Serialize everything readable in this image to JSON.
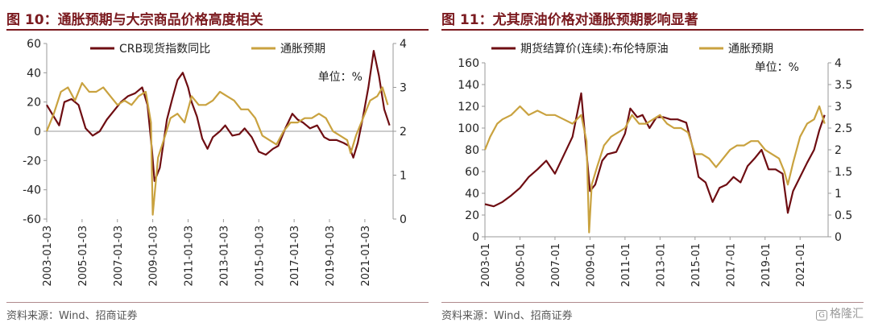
{
  "left": {
    "title": "图 10：通胀预期与大宗商品价格高度相关",
    "source": "资料来源：Wind、招商证券"
  },
  "right": {
    "title": "图 11：尤其原油价格对通胀预期影响显著",
    "source": "资料来源：Wind、招商证券"
  },
  "watermark": {
    "mark": "G",
    "text": "格隆汇"
  },
  "chart_data": [
    {
      "type": "line",
      "title": "",
      "unit_label": "单位：%",
      "legend_position": "top",
      "grid": false,
      "x_axis": {
        "min": 2003.0,
        "max": 2022.6,
        "tick_labels": [
          "2003-01-03",
          "2005-01-03",
          "2007-01-03",
          "2009-01-03",
          "2011-01-03",
          "2013-01-03",
          "2015-01-03",
          "2017-01-03",
          "2019-01-03",
          "2021-01-03"
        ],
        "tick_values": [
          2003,
          2005,
          2007,
          2009,
          2011,
          2013,
          2015,
          2017,
          2019,
          2021
        ]
      },
      "y_left": {
        "min": -60,
        "max": 60,
        "ticks": [
          -60,
          -40,
          -20,
          0,
          20,
          40,
          60
        ]
      },
      "y_right": {
        "min": 0,
        "max": 4,
        "ticks": [
          0,
          1,
          2,
          3,
          4
        ]
      },
      "series": [
        {
          "name": "CRB现货指数同比",
          "color": "#6e0d12",
          "axis": "left",
          "x": [
            2003.0,
            2003.3,
            2003.7,
            2004.0,
            2004.4,
            2004.8,
            2005.2,
            2005.6,
            2006.0,
            2006.4,
            2006.8,
            2007.2,
            2007.6,
            2008.0,
            2008.4,
            2008.7,
            2008.95,
            2009.1,
            2009.4,
            2009.8,
            2010.1,
            2010.4,
            2010.7,
            2011.0,
            2011.2,
            2011.5,
            2011.8,
            2012.1,
            2012.4,
            2012.8,
            2013.1,
            2013.5,
            2013.9,
            2014.2,
            2014.6,
            2015.0,
            2015.4,
            2015.8,
            2016.1,
            2016.5,
            2016.9,
            2017.2,
            2017.5,
            2017.9,
            2018.3,
            2018.7,
            2019.0,
            2019.4,
            2019.8,
            2020.1,
            2020.35,
            2020.6,
            2020.9,
            2021.2,
            2021.5,
            2021.8,
            2022.1,
            2022.4
          ],
          "y": [
            18,
            12,
            4,
            20,
            22,
            18,
            2,
            -3,
            0,
            8,
            14,
            20,
            24,
            26,
            30,
            18,
            -12,
            -34,
            -25,
            8,
            22,
            35,
            40,
            30,
            20,
            10,
            -5,
            -12,
            -4,
            0,
            4,
            -3,
            -2,
            2,
            -4,
            -14,
            -16,
            -12,
            -10,
            2,
            12,
            8,
            6,
            2,
            4,
            -4,
            -6,
            -6,
            -8,
            -10,
            -18,
            -8,
            10,
            30,
            55,
            38,
            15,
            4
          ]
        },
        {
          "name": "通胀预期",
          "color": "#c9a23f",
          "axis": "right",
          "x": [
            2003.0,
            2003.4,
            2003.8,
            2004.2,
            2004.6,
            2005.0,
            2005.4,
            2005.8,
            2006.2,
            2006.6,
            2007.0,
            2007.4,
            2007.8,
            2008.2,
            2008.6,
            2008.9,
            2009.0,
            2009.3,
            2009.7,
            2010.0,
            2010.4,
            2010.8,
            2011.2,
            2011.6,
            2012.0,
            2012.4,
            2012.8,
            2013.2,
            2013.6,
            2014.0,
            2014.4,
            2014.8,
            2015.2,
            2015.6,
            2016.0,
            2016.4,
            2016.8,
            2017.2,
            2017.6,
            2018.0,
            2018.4,
            2018.8,
            2019.2,
            2019.6,
            2020.0,
            2020.2,
            2020.5,
            2020.9,
            2021.3,
            2021.7,
            2022.0,
            2022.3
          ],
          "y": [
            2.0,
            2.4,
            2.9,
            3.0,
            2.7,
            3.1,
            2.9,
            2.9,
            3.0,
            2.8,
            2.6,
            2.7,
            2.6,
            2.8,
            2.9,
            2.2,
            0.1,
            1.4,
            1.9,
            2.3,
            2.4,
            2.2,
            2.8,
            2.6,
            2.6,
            2.7,
            2.9,
            2.8,
            2.7,
            2.5,
            2.5,
            2.3,
            1.9,
            1.8,
            1.7,
            2.0,
            2.2,
            2.2,
            2.3,
            2.3,
            2.4,
            2.3,
            2.0,
            1.9,
            1.8,
            1.5,
            1.9,
            2.3,
            2.7,
            2.8,
            3.0,
            2.6
          ]
        }
      ]
    },
    {
      "type": "line",
      "title": "",
      "unit_label": "单位：%",
      "legend_position": "top",
      "grid": false,
      "x_axis": {
        "min": 2003.0,
        "max": 2022.6,
        "tick_labels": [
          "2003-01",
          "2005-01",
          "2007-01",
          "2009-01",
          "2011-01",
          "2013-01",
          "2015-01",
          "2017-01",
          "2019-01",
          "2021-01"
        ],
        "tick_values": [
          2003,
          2005,
          2007,
          2009,
          2011,
          2013,
          2015,
          2017,
          2019,
          2021
        ]
      },
      "y_left": {
        "min": 0,
        "max": 160,
        "ticks": [
          0,
          20,
          40,
          60,
          80,
          100,
          120,
          140,
          160
        ]
      },
      "y_right": {
        "min": 0,
        "max": 4,
        "ticks": [
          0,
          0.5,
          1,
          1.5,
          2,
          2.5,
          3,
          3.5,
          4
        ]
      },
      "series": [
        {
          "name": "期货结算价(连续):布伦特原油",
          "color": "#6e0d12",
          "axis": "left",
          "x": [
            2003.0,
            2003.5,
            2004.0,
            2004.5,
            2005.0,
            2005.5,
            2006.0,
            2006.5,
            2007.0,
            2007.5,
            2008.0,
            2008.5,
            2008.9,
            2009.0,
            2009.3,
            2009.7,
            2010.0,
            2010.5,
            2011.0,
            2011.3,
            2011.7,
            2012.0,
            2012.4,
            2012.8,
            2013.2,
            2013.6,
            2014.0,
            2014.5,
            2014.9,
            2015.2,
            2015.6,
            2016.0,
            2016.4,
            2016.8,
            2017.2,
            2017.6,
            2018.0,
            2018.4,
            2018.8,
            2019.2,
            2019.6,
            2020.0,
            2020.3,
            2020.6,
            2021.0,
            2021.4,
            2021.8,
            2022.1,
            2022.4
          ],
          "y": [
            30,
            28,
            32,
            38,
            45,
            55,
            62,
            70,
            58,
            75,
            92,
            132,
            60,
            42,
            48,
            70,
            76,
            78,
            95,
            118,
            110,
            112,
            100,
            110,
            110,
            108,
            108,
            105,
            80,
            55,
            50,
            32,
            45,
            48,
            55,
            50,
            65,
            72,
            80,
            62,
            62,
            58,
            22,
            42,
            55,
            68,
            80,
            98,
            112
          ]
        },
        {
          "name": "通胀预期",
          "color": "#c9a23f",
          "axis": "right",
          "x": [
            2003.0,
            2003.3,
            2003.7,
            2004.0,
            2004.5,
            2005.0,
            2005.5,
            2006.0,
            2006.5,
            2007.0,
            2007.5,
            2008.0,
            2008.5,
            2008.8,
            2008.95,
            2009.1,
            2009.4,
            2009.8,
            2010.2,
            2010.6,
            2011.0,
            2011.4,
            2011.8,
            2012.2,
            2012.6,
            2013.0,
            2013.4,
            2013.8,
            2014.2,
            2014.6,
            2015.0,
            2015.4,
            2015.8,
            2016.2,
            2016.6,
            2017.0,
            2017.4,
            2017.8,
            2018.2,
            2018.6,
            2019.0,
            2019.4,
            2019.8,
            2020.1,
            2020.3,
            2020.6,
            2021.0,
            2021.4,
            2021.8,
            2022.1,
            2022.4
          ],
          "y": [
            2.0,
            2.3,
            2.6,
            2.7,
            2.8,
            3.0,
            2.8,
            2.9,
            2.8,
            2.8,
            2.7,
            2.6,
            2.8,
            2.2,
            0.1,
            1.2,
            1.6,
            2.1,
            2.3,
            2.4,
            2.5,
            2.8,
            2.6,
            2.6,
            2.7,
            2.8,
            2.6,
            2.5,
            2.5,
            2.4,
            1.9,
            1.9,
            1.8,
            1.6,
            1.8,
            2.0,
            2.1,
            2.1,
            2.2,
            2.2,
            2.0,
            1.9,
            1.8,
            1.5,
            1.2,
            1.7,
            2.3,
            2.6,
            2.7,
            3.0,
            2.6
          ]
        }
      ]
    }
  ]
}
